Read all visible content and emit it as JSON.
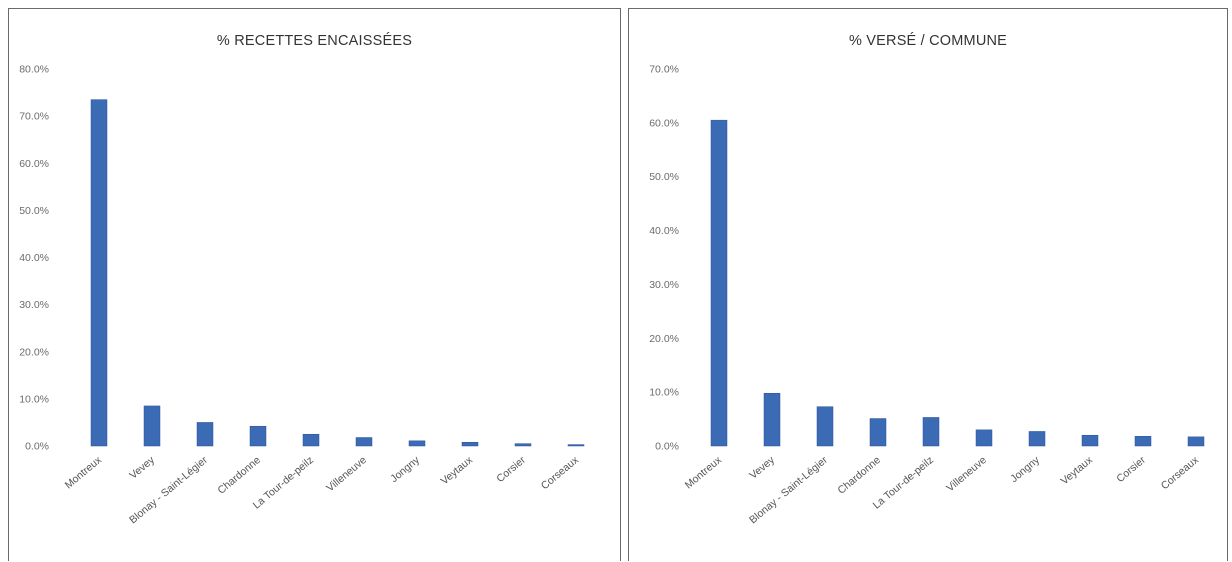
{
  "chart_data": [
    {
      "type": "bar",
      "title": "% RECETTES ENCAISSÉES",
      "categories": [
        "Montreux",
        "Vevey",
        "Blonay - Saint-Légier",
        "Chardonne",
        "La Tour-de-peilz",
        "Villeneuve",
        "Jongny",
        "Veytaux",
        "Corsier",
        "Corseaux"
      ],
      "values": [
        73.5,
        8.5,
        5.0,
        4.2,
        2.5,
        1.8,
        1.1,
        0.8,
        0.5,
        0.3
      ],
      "ylim": [
        0,
        80
      ],
      "yticks": [
        "0.0%",
        "10.0%",
        "20.0%",
        "30.0%",
        "40.0%",
        "50.0%",
        "60.0%",
        "70.0%",
        "80.0%"
      ],
      "grid": false,
      "color": "#3c6bb5"
    },
    {
      "type": "bar",
      "title": "% VERSÉ / COMMUNE",
      "categories": [
        "Montreux",
        "Vevey",
        "Blonay - Saint-Légier",
        "Chardonne",
        "La Tour-de-peilz",
        "Villeneuve",
        "Jongny",
        "Veytaux",
        "Corsier",
        "Corseaux"
      ],
      "values": [
        60.5,
        9.8,
        7.3,
        5.1,
        5.3,
        3.0,
        2.7,
        2.0,
        1.8,
        1.7
      ],
      "ylim": [
        0,
        70
      ],
      "yticks": [
        "0.0%",
        "10.0%",
        "20.0%",
        "30.0%",
        "40.0%",
        "50.0%",
        "60.0%",
        "70.0%"
      ],
      "grid": false,
      "color": "#3c6bb5"
    }
  ]
}
